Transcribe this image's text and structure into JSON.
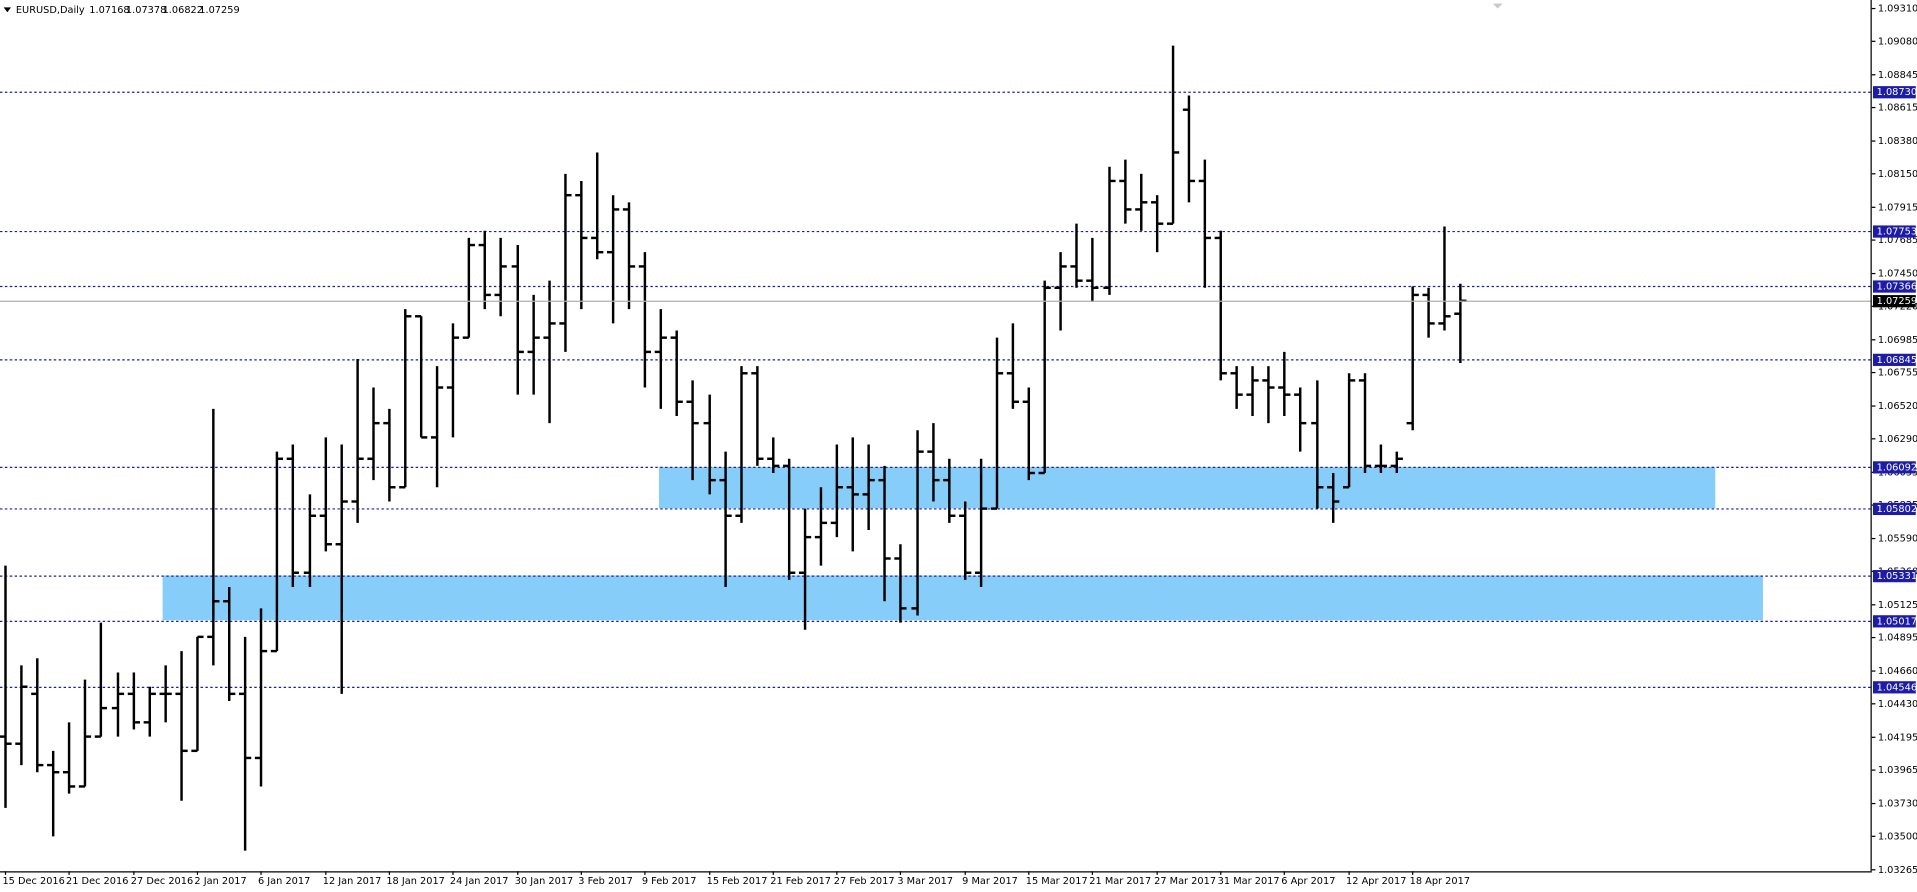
{
  "chart_data": {
    "type": "ohlc",
    "title": "EURUSD,Daily",
    "bar_color": "#000000",
    "level_color": "#1c1ca8",
    "zone_color": "#87cdf9",
    "price_line_color": "#b0b0b0",
    "categories": [
      "15 Dec 2016",
      null,
      null,
      null,
      "21 Dec 2016",
      null,
      null,
      null,
      "27 Dec 2016",
      null,
      null,
      null,
      "2 Jan 2017",
      null,
      null,
      null,
      "6 Jan 2017",
      null,
      null,
      null,
      "12 Jan 2017",
      null,
      null,
      null,
      "18 Jan 2017",
      null,
      null,
      null,
      "24 Jan 2017",
      null,
      null,
      null,
      "30 Jan 2017",
      null,
      null,
      null,
      "3 Feb 2017",
      null,
      null,
      null,
      "9 Feb 2017",
      null,
      null,
      null,
      "15 Feb 2017",
      null,
      null,
      null,
      "21 Feb 2017",
      null,
      null,
      null,
      "27 Feb 2017",
      null,
      null,
      null,
      "3 Mar 2017",
      null,
      null,
      null,
      "9 Mar 2017",
      null,
      null,
      null,
      "15 Mar 2017",
      null,
      null,
      null,
      "21 Mar 2017",
      null,
      null,
      null,
      "27 Mar 2017",
      null,
      null,
      null,
      "31 Mar 2017",
      null,
      null,
      null,
      "6 Apr 2017",
      null,
      null,
      null,
      "12 Apr 2017",
      null,
      null,
      null,
      "18 Apr 2017",
      null,
      null,
      null
    ],
    "open": [
      1.042,
      1.0415,
      1.045,
      1.04,
      1.0395,
      1.0385,
      1.042,
      1.044,
      1.045,
      1.043,
      1.045,
      1.045,
      1.041,
      1.049,
      1.0515,
      1.045,
      1.0405,
      1.048,
      1.0615,
      1.0535,
      1.0575,
      1.0555,
      1.0585,
      1.0615,
      1.064,
      1.0595,
      1.0715,
      1.063,
      1.0665,
      1.07,
      1.0765,
      1.073,
      1.075,
      1.069,
      1.07,
      1.071,
      1.08,
      1.077,
      1.076,
      1.079,
      1.075,
      1.069,
      1.07,
      1.0655,
      1.064,
      1.06,
      1.0575,
      1.0675,
      1.0615,
      1.061,
      1.0535,
      1.056,
      1.057,
      1.0595,
      1.059,
      1.06,
      1.0545,
      1.051,
      1.062,
      1.06,
      1.0575,
      1.0535,
      1.058,
      1.0675,
      1.0655,
      1.0605,
      1.0735,
      1.075,
      1.074,
      1.0735,
      1.081,
      1.079,
      1.0795,
      1.078,
      1.086,
      1.081,
      1.077,
      1.0675,
      1.066,
      1.067,
      1.0665,
      1.066,
      1.064,
      1.0595,
      1.0595,
      1.067,
      1.061,
      1.061,
      1.064,
      1.073,
      1.071,
      1.07168
    ],
    "high": [
      1.054,
      1.047,
      1.0475,
      1.041,
      1.043,
      1.046,
      1.05,
      1.0465,
      1.0465,
      1.0455,
      1.047,
      1.048,
      1.049,
      1.065,
      1.0525,
      1.049,
      1.051,
      1.062,
      1.0625,
      1.059,
      1.063,
      1.0625,
      1.0685,
      1.0665,
      1.065,
      1.072,
      1.0715,
      1.068,
      1.071,
      1.077,
      1.0775,
      1.077,
      1.0765,
      1.073,
      1.074,
      1.0815,
      1.081,
      1.083,
      1.08,
      1.0795,
      1.076,
      1.072,
      1.0705,
      1.067,
      1.066,
      1.062,
      1.068,
      1.068,
      1.063,
      1.0615,
      1.058,
      1.0595,
      1.0625,
      1.063,
      1.0625,
      1.061,
      1.0555,
      1.0635,
      1.064,
      1.0615,
      1.0585,
      1.0615,
      1.07,
      1.071,
      1.0665,
      1.074,
      1.076,
      1.078,
      1.077,
      1.082,
      1.0825,
      1.0815,
      1.08,
      1.0905,
      1.087,
      1.0825,
      1.0775,
      1.068,
      1.068,
      1.068,
      1.069,
      1.0665,
      1.067,
      1.0605,
      1.0675,
      1.0675,
      1.0625,
      1.062,
      1.0736,
      1.0735,
      1.0778,
      1.07378
    ],
    "low": [
      1.037,
      1.04,
      1.0395,
      1.035,
      1.038,
      1.0385,
      1.042,
      1.042,
      1.0425,
      1.042,
      1.043,
      1.0375,
      1.041,
      1.047,
      1.0445,
      1.034,
      1.0385,
      1.048,
      1.0525,
      1.0525,
      1.055,
      1.045,
      1.057,
      1.06,
      1.0585,
      1.0595,
      1.063,
      1.0595,
      1.063,
      1.07,
      1.072,
      1.0715,
      1.066,
      1.066,
      1.064,
      1.069,
      1.072,
      1.0755,
      1.071,
      1.072,
      1.0665,
      1.065,
      1.0645,
      1.06,
      1.059,
      1.0525,
      1.057,
      1.061,
      1.0605,
      1.053,
      1.0495,
      1.054,
      1.056,
      1.055,
      1.0565,
      1.0515,
      1.05,
      1.0505,
      1.0585,
      1.057,
      1.053,
      1.0525,
      1.058,
      1.065,
      1.06,
      1.0605,
      1.0705,
      1.0735,
      1.0725,
      1.073,
      1.078,
      1.0775,
      1.076,
      1.078,
      1.0795,
      1.0735,
      1.067,
      1.065,
      1.0645,
      1.064,
      1.0645,
      1.062,
      1.058,
      1.057,
      1.0595,
      1.0605,
      1.0605,
      1.0605,
      1.0635,
      1.07,
      1.0705,
      1.06822
    ],
    "close": [
      1.0415,
      1.0455,
      1.04,
      1.0395,
      1.0385,
      1.042,
      1.044,
      1.045,
      1.043,
      1.045,
      1.045,
      1.041,
      1.049,
      1.0515,
      1.045,
      1.0405,
      1.048,
      1.0615,
      1.0535,
      1.0575,
      1.0555,
      1.0585,
      1.0615,
      1.064,
      1.0595,
      1.0715,
      1.063,
      1.0665,
      1.07,
      1.0765,
      1.073,
      1.075,
      1.069,
      1.07,
      1.071,
      1.08,
      1.077,
      1.076,
      1.079,
      1.075,
      1.069,
      1.07,
      1.0655,
      1.064,
      1.06,
      1.0575,
      1.0675,
      1.0615,
      1.061,
      1.0535,
      1.056,
      1.057,
      1.0595,
      1.059,
      1.06,
      1.0545,
      1.051,
      1.062,
      1.06,
      1.0575,
      1.0535,
      1.058,
      1.0675,
      1.0655,
      1.0605,
      1.0735,
      1.075,
      1.074,
      1.0735,
      1.081,
      1.079,
      1.0795,
      1.078,
      1.083,
      1.081,
      1.077,
      1.0675,
      1.066,
      1.067,
      1.0665,
      1.066,
      1.064,
      1.0595,
      1.0585,
      1.067,
      1.061,
      1.061,
      1.0615,
      1.073,
      1.071,
      1.0715,
      1.07259
    ],
    "levels": [
      {
        "value": 1.0873,
        "label": "1.08730"
      },
      1.07753,
      1.07366,
      1.06845,
      1.06092,
      1.05802,
      1.05331,
      1.05017,
      1.04546
    ],
    "zones": [
      [
        4,
        5
      ],
      [
        6,
        7
      ]
    ],
    "ylim": [
      1.03255,
      1.0937
    ],
    "yticks": [
      {
        "value": 1.0931,
        "label": "1.09310"
      },
      {
        "value": 1.0908,
        "label": "1.09080"
      },
      1.08845,
      1.08615,
      {
        "value": 1.0838,
        "label": "1.08380"
      },
      {
        "value": 1.0815,
        "label": "1.08150"
      },
      1.07915,
      1.07685,
      {
        "value": 1.0745,
        "label": "1.07450"
      },
      {
        "value": 1.0722,
        "label": "1.07220"
      },
      1.06985,
      1.06755,
      {
        "value": 1.0652,
        "label": "1.06520"
      },
      {
        "value": 1.0629,
        "label": "1.06290"
      },
      1.06055,
      1.05825,
      {
        "value": 1.0559,
        "label": "1.05590"
      },
      {
        "value": 1.0536,
        "label": "1.05360"
      },
      1.05125,
      1.04895,
      {
        "value": 1.0466,
        "label": "1.04660"
      },
      {
        "value": 1.0443,
        "label": "1.04430"
      },
      1.04195,
      1.03965,
      {
        "value": 1.0373,
        "label": "1.03730"
      },
      {
        "value": 1.035,
        "label": "1.03500"
      },
      1.03265
    ]
  }
}
